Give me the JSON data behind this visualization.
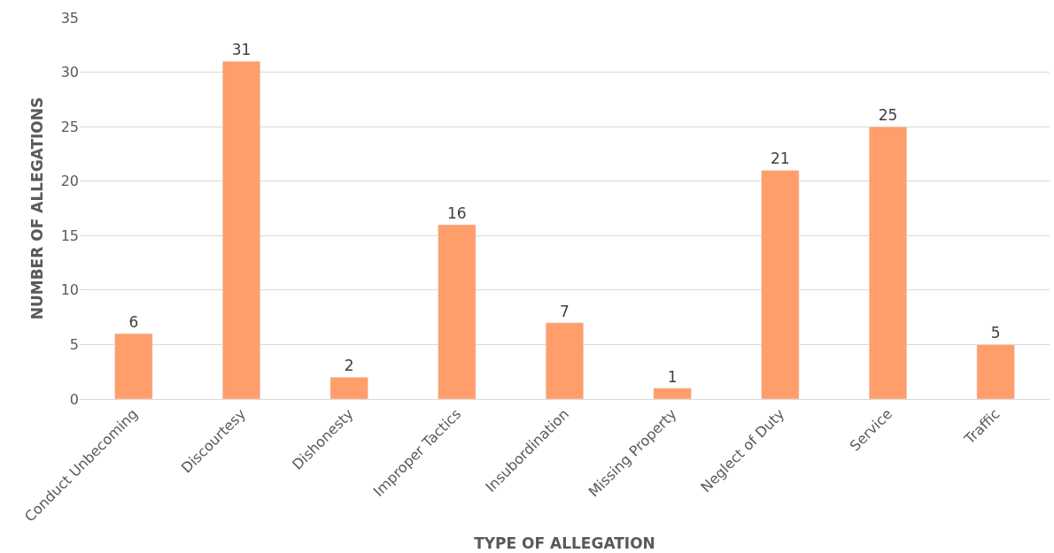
{
  "chart_data": {
    "type": "bar",
    "xlabel": "TYPE OF ALLEGATION",
    "ylabel": "NUMBER OF ALLEGATIONS",
    "categories": [
      "Conduct Unbecoming",
      "Discourtesy",
      "Dishonesty",
      "Improper Tactics",
      "Insubordination",
      "Missing Property",
      "Neglect of Duty",
      "Service",
      "Traffic"
    ],
    "values": [
      6,
      31,
      2,
      16,
      7,
      1,
      21,
      25,
      5
    ],
    "color": "#ff9e6b",
    "ylim": [
      0,
      35
    ],
    "yticks": [
      0,
      5,
      10,
      15,
      20,
      25,
      30,
      35
    ],
    "grid": "y",
    "data_labels": true,
    "legend": false
  }
}
